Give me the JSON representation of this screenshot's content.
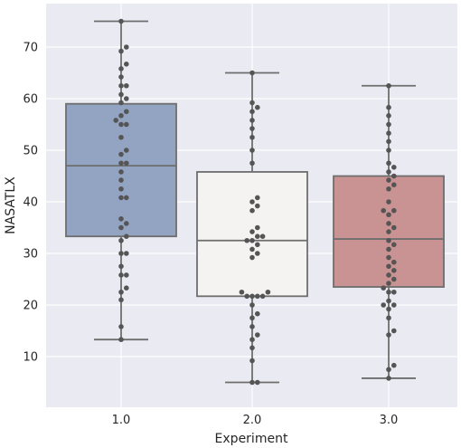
{
  "chart_data": {
    "type": "box",
    "xlabel": "Experiment",
    "ylabel": "NASATLX",
    "ylim": [
      3,
      78
    ],
    "y_ticks": [
      "10",
      "20",
      "30",
      "40",
      "50",
      "60",
      "70"
    ],
    "categories": [
      "1.0",
      "2.0",
      "3.0"
    ],
    "grid": true,
    "boxes": [
      {
        "category": "1.0",
        "whisker_low": 13.3,
        "q1": 33.3,
        "median": 47.0,
        "q3": 59.0,
        "whisker_high": 75.0,
        "color": "#93a4c3"
      },
      {
        "category": "2.0",
        "whisker_low": 5.0,
        "q1": 21.7,
        "median": 32.5,
        "q3": 45.8,
        "whisker_high": 65.0,
        "color": "#f5f2f2"
      },
      {
        "category": "3.0",
        "whisker_low": 5.8,
        "q1": 23.5,
        "median": 32.8,
        "q3": 45.0,
        "whisker_high": 62.5,
        "color": "#c99393"
      }
    ],
    "points": [
      [
        13.3,
        15.8,
        21.0,
        22.5,
        23.3,
        25.8,
        25.8,
        27.5,
        30.0,
        30.0,
        32.5,
        33.3,
        35.0,
        35.8,
        36.7,
        40.8,
        40.8,
        42.5,
        44.2,
        45.8,
        47.5,
        47.5,
        49.2,
        50.0,
        52.5,
        55.0,
        55.0,
        55.8,
        56.7,
        57.5,
        59.2,
        60.0,
        60.8,
        62.5,
        62.5,
        64.2,
        65.8,
        66.7,
        69.2,
        70.0,
        75.0
      ],
      [
        5.0,
        5.0,
        9.2,
        11.7,
        13.3,
        14.2,
        15.8,
        17.5,
        18.3,
        20.0,
        21.7,
        21.7,
        21.7,
        21.7,
        22.5,
        22.5,
        29.2,
        30.0,
        30.8,
        31.7,
        32.5,
        32.5,
        33.3,
        33.3,
        34.2,
        35.0,
        38.3,
        39.2,
        40.0,
        40.8,
        47.5,
        50.0,
        52.5,
        54.2,
        55.8,
        57.5,
        58.3,
        59.2,
        65.0
      ],
      [
        5.8,
        7.5,
        8.3,
        14.2,
        15.0,
        17.5,
        19.2,
        20.0,
        20.0,
        20.8,
        22.5,
        22.5,
        23.3,
        24.2,
        25.0,
        25.8,
        26.7,
        27.5,
        28.3,
        29.2,
        30.8,
        31.7,
        32.5,
        34.2,
        35.0,
        35.8,
        37.5,
        38.3,
        38.3,
        40.0,
        42.5,
        43.3,
        44.2,
        45.0,
        45.8,
        46.7,
        47.5,
        50.0,
        51.7,
        53.3,
        55.0,
        56.7,
        58.3,
        62.5
      ]
    ],
    "point_color": "#555555",
    "background_color": "#eaeaf2",
    "line_color": "#6e6e6e"
  }
}
